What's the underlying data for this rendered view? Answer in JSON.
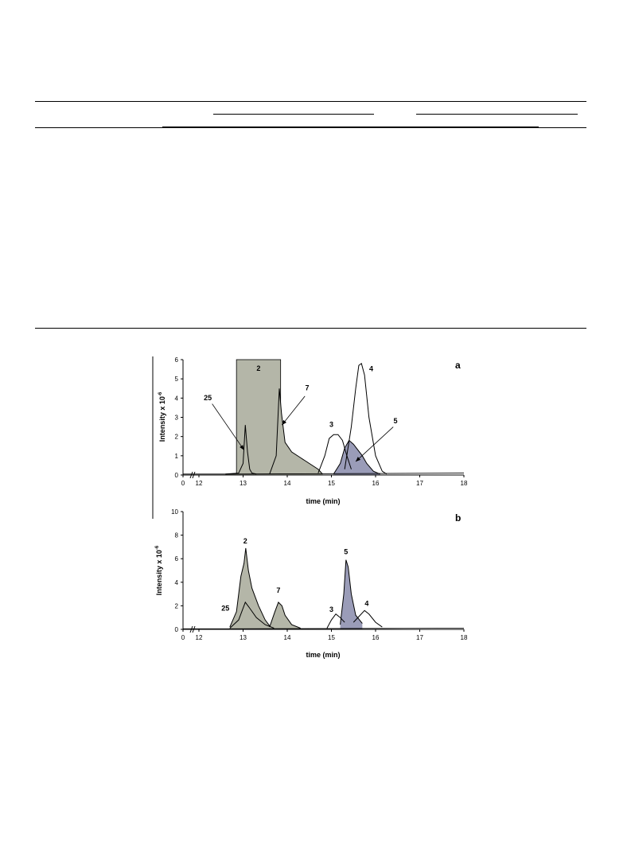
{
  "chart_data": [
    {
      "type": "line",
      "panel_label": "a",
      "xlabel": "time (min)",
      "ylabel": "Intensity x 10",
      "ylabel_exponent": "-6",
      "xlim": [
        0,
        18
      ],
      "x_axis_break": true,
      "x_ticks": [
        0,
        12,
        13,
        14,
        15,
        16,
        17,
        18
      ],
      "ylim": [
        0,
        6
      ],
      "y_ticks": [
        0,
        1,
        2,
        3,
        4,
        5,
        6
      ],
      "grid": false,
      "legend": "none",
      "fill_gray": "#b4b6a8",
      "fill_purple": "#9a9cb8",
      "saturated_peak": {
        "label": "2",
        "x_start": 12.85,
        "x_end": 13.85,
        "y": 6
      },
      "series": [
        {
          "label": "25",
          "x": [
            12.6,
            12.9,
            13.0,
            13.05,
            13.1,
            13.15,
            13.2,
            13.3
          ],
          "y": [
            0.05,
            0.1,
            0.6,
            2.6,
            1.2,
            0.3,
            0.1,
            0.05
          ]
        },
        {
          "label": "7",
          "x": [
            13.6,
            13.75,
            13.82,
            13.87,
            13.95,
            14.1,
            14.3,
            14.5,
            14.7,
            14.8
          ],
          "y": [
            0.05,
            1.0,
            4.5,
            3.2,
            1.7,
            1.2,
            0.9,
            0.6,
            0.3,
            0.05
          ]
        },
        {
          "label": "3",
          "x": [
            14.7,
            14.85,
            14.95,
            15.05,
            15.15,
            15.25,
            15.35,
            15.45
          ],
          "y": [
            0.1,
            1.0,
            1.9,
            2.1,
            2.1,
            1.8,
            1.0,
            0.3
          ]
        },
        {
          "label": "4",
          "x": [
            15.3,
            15.45,
            15.55,
            15.62,
            15.68,
            15.75,
            15.85,
            16.0,
            16.15,
            16.25
          ],
          "y": [
            0.3,
            2.5,
            4.5,
            5.7,
            5.8,
            5.2,
            3.0,
            1.0,
            0.2,
            0.05
          ]
        },
        {
          "label": "5",
          "x": [
            15.05,
            15.2,
            15.3,
            15.4,
            15.5,
            15.6,
            15.7,
            15.8,
            15.95,
            16.1
          ],
          "y": [
            0.05,
            0.6,
            1.4,
            1.8,
            1.6,
            1.3,
            1.0,
            0.6,
            0.2,
            0.05
          ]
        }
      ],
      "annotations": [
        {
          "text": "25",
          "x": 12.2,
          "y": 3.9
        },
        {
          "text": "7",
          "x": 14.45,
          "y": 4.4
        },
        {
          "text": "3",
          "x": 15.0,
          "y": 2.5
        },
        {
          "text": "4",
          "x": 15.9,
          "y": 5.4
        },
        {
          "text": "5",
          "x": 16.45,
          "y": 2.7
        }
      ]
    },
    {
      "type": "line",
      "panel_label": "b",
      "xlabel": "time (min)",
      "ylabel": "Intensity x 10",
      "ylabel_exponent": "-6",
      "xlim": [
        0,
        18
      ],
      "x_axis_break": true,
      "x_ticks": [
        0,
        12,
        13,
        14,
        15,
        16,
        17,
        18
      ],
      "ylim": [
        0,
        10
      ],
      "y_ticks": [
        0,
        2,
        4,
        6,
        8,
        10
      ],
      "grid": false,
      "legend": "none",
      "fill_gray": "#b4b6a8",
      "fill_purple": "#9a9cb8",
      "series": [
        {
          "label": "2",
          "x": [
            12.7,
            12.85,
            12.95,
            13.02,
            13.06,
            13.12,
            13.2,
            13.35,
            13.5,
            13.6
          ],
          "y": [
            0.2,
            1.5,
            4.5,
            5.6,
            6.9,
            5.0,
            3.5,
            2.0,
            0.8,
            0.3
          ]
        },
        {
          "label": "25",
          "x": [
            12.7,
            12.9,
            13.0,
            13.05,
            13.15,
            13.3,
            13.5,
            13.7
          ],
          "y": [
            0.1,
            0.8,
            1.8,
            2.3,
            1.8,
            1.0,
            0.4,
            0.1
          ]
        },
        {
          "label": "7",
          "x": [
            13.6,
            13.72,
            13.8,
            13.88,
            13.95,
            14.1,
            14.3
          ],
          "y": [
            0.2,
            1.5,
            2.3,
            2.0,
            1.2,
            0.4,
            0.1
          ]
        },
        {
          "label": "3",
          "x": [
            14.9,
            15.0,
            15.1,
            15.2,
            15.3
          ],
          "y": [
            0.1,
            0.8,
            1.3,
            1.0,
            0.6
          ]
        },
        {
          "label": "5",
          "x": [
            15.2,
            15.28,
            15.33,
            15.38,
            15.45,
            15.55,
            15.7
          ],
          "y": [
            0.4,
            3.0,
            5.9,
            5.3,
            3.0,
            1.2,
            0.5
          ]
        },
        {
          "label": "4",
          "x": [
            15.5,
            15.65,
            15.75,
            15.85,
            16.0,
            16.15
          ],
          "y": [
            0.6,
            1.2,
            1.6,
            1.3,
            0.6,
            0.2
          ]
        }
      ],
      "annotations": [
        {
          "text": "2",
          "x": 13.05,
          "y": 7.3
        },
        {
          "text": "25",
          "x": 12.6,
          "y": 1.6
        },
        {
          "text": "7",
          "x": 13.8,
          "y": 3.1
        },
        {
          "text": "3",
          "x": 15.0,
          "y": 1.5
        },
        {
          "text": "5",
          "x": 15.33,
          "y": 6.4
        },
        {
          "text": "4",
          "x": 15.8,
          "y": 2.0
        }
      ]
    }
  ]
}
